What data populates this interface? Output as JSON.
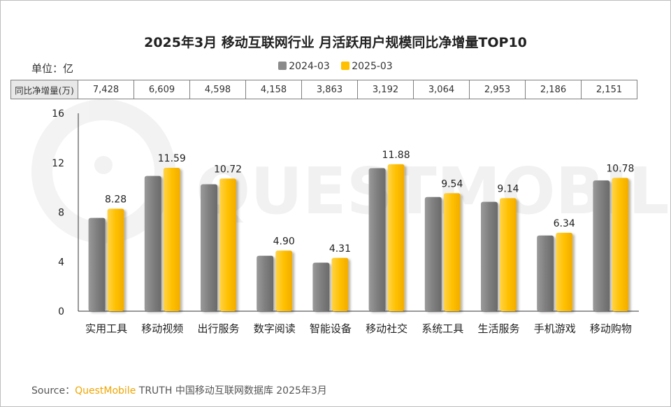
{
  "chart_data": {
    "type": "bar",
    "title": "2025年3月 移动互联网行业 月活跃用户规模同比净增量TOP10",
    "unit_label": "单位：亿",
    "categories": [
      "实用工具",
      "移动视频",
      "出行服务",
      "数字阅读",
      "智能设备",
      "移动社交",
      "系统工具",
      "生活服务",
      "手机游戏",
      "移动购物"
    ],
    "series": [
      {
        "name": "2024-03",
        "values": [
          7.54,
          10.93,
          10.26,
          4.48,
          3.92,
          11.56,
          9.23,
          8.84,
          6.12,
          10.57
        ]
      },
      {
        "name": "2025-03",
        "values": [
          8.28,
          11.59,
          10.72,
          4.9,
          4.31,
          11.88,
          9.54,
          9.14,
          6.34,
          10.78
        ]
      }
    ],
    "data_labels": [
      "8.28",
      "11.59",
      "10.72",
      "4.90",
      "4.31",
      "11.88",
      "9.54",
      "9.14",
      "6.34",
      "10.78"
    ],
    "ylim": [
      0,
      16
    ],
    "yticks": [
      0,
      4,
      8,
      12,
      16
    ],
    "legend_position": "top-center",
    "colors": {
      "2024-03": "#8a8a8a",
      "2025-03": "#ffc000"
    },
    "table": {
      "header": "同比净增量(万)",
      "values": [
        "7,428",
        "6,609",
        "4,598",
        "4,158",
        "3,863",
        "3,192",
        "3,064",
        "2,953",
        "2,186",
        "2,151"
      ]
    }
  },
  "watermark": "QUESTMOBILE",
  "source": {
    "prefix": "Source：",
    "brand": "QuestMobile",
    "rest": " TRUTH 中国移动互联网数据库 2025年3月"
  }
}
